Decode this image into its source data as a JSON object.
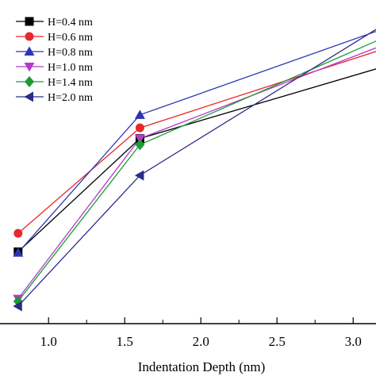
{
  "chart_data": {
    "type": "line",
    "xlabel": "Indentation Depth  (nm)",
    "ylabel": "",
    "title": "",
    "xlim": [
      0.65,
      3.15
    ],
    "ylim": [
      0,
      1
    ],
    "x_ticks": [
      "1.0",
      "1.5",
      "2.0",
      "2.5",
      "3.0"
    ],
    "x_tick_values": [
      1.0,
      1.5,
      2.0,
      2.5,
      3.0
    ],
    "legend_position": "top-left",
    "grid": false,
    "series": [
      {
        "name": "H=0.4 nm",
        "color": "#000000",
        "marker": "square",
        "x": [
          0.8,
          1.6,
          3.15
        ],
        "y": [
          0.222,
          0.572,
          0.787
        ]
      },
      {
        "name": "H=0.6 nm",
        "color": "#e8282a",
        "marker": "circle",
        "x": [
          0.8,
          1.6,
          3.15
        ],
        "y": [
          0.279,
          0.605,
          0.841
        ]
      },
      {
        "name": "H=0.8 nm",
        "color": "#2a36b4",
        "marker": "triangle-up",
        "x": [
          0.8,
          1.6,
          3.15
        ],
        "y": [
          0.219,
          0.645,
          0.903
        ]
      },
      {
        "name": "H=1.0 nm",
        "color": "#b33aca",
        "marker": "triangle-down",
        "x": [
          0.8,
          1.6,
          3.15
        ],
        "y": [
          0.077,
          0.572,
          0.852
        ]
      },
      {
        "name": "H=1.4 nm",
        "color": "#1b9b35",
        "marker": "diamond",
        "x": [
          0.8,
          1.6,
          3.15
        ],
        "y": [
          0.069,
          0.553,
          0.873
        ]
      },
      {
        "name": "H=2.0 nm",
        "color": "#2a2c8a",
        "marker": "triangle-left",
        "x": [
          0.8,
          1.6,
          3.15
        ],
        "y": [
          0.054,
          0.458,
          0.909
        ]
      }
    ]
  }
}
